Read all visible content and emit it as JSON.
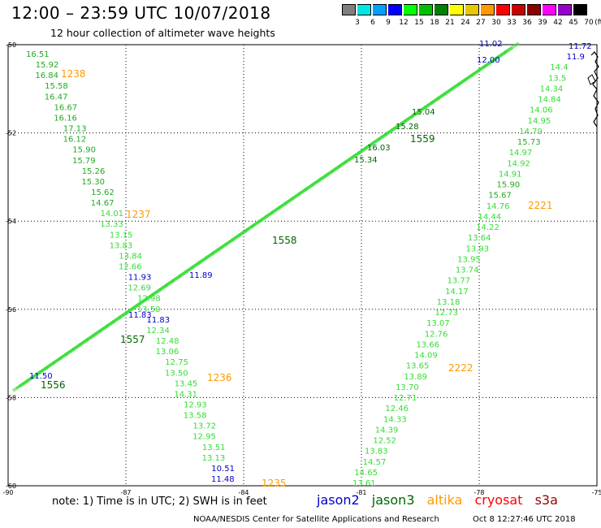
{
  "header": {
    "title": "12:00 – 23:59 UTC 10/07/2018",
    "subtitle": "12 hour collection of altimeter wave heights"
  },
  "colorbar": {
    "unit": "(ft)",
    "levels": [
      {
        "label": "3",
        "color": "#7f7f7f"
      },
      {
        "label": "6",
        "color": "#00e5e5"
      },
      {
        "label": "9",
        "color": "#00a0ff"
      },
      {
        "label": "12",
        "color": "#0000ff"
      },
      {
        "label": "15",
        "color": "#00ff00"
      },
      {
        "label": "18",
        "color": "#00c000"
      },
      {
        "label": "21",
        "color": "#008000"
      },
      {
        "label": "24",
        "color": "#ffff00"
      },
      {
        "label": "27",
        "color": "#e6c800"
      },
      {
        "label": "30",
        "color": "#ff9900"
      },
      {
        "label": "33",
        "color": "#ff0000"
      },
      {
        "label": "36",
        "color": "#c80000"
      },
      {
        "label": "39",
        "color": "#8b0000"
      },
      {
        "label": "42",
        "color": "#ff00ff"
      },
      {
        "label": "45",
        "color": "#9900cc"
      },
      {
        "label": "70",
        "color": "#000000"
      }
    ]
  },
  "axes": {
    "lon_ticks": [
      "-90",
      "-87",
      "-84",
      "-81",
      "-78",
      "-75"
    ],
    "lat_ticks": [
      "-50",
      "-52",
      "-54",
      "-56",
      "-58",
      "-60"
    ]
  },
  "colors": {
    "jason2": "#0000cc",
    "jason3": "#006600",
    "altika": "#ff9900",
    "cryosat": "#ff0000",
    "s3a": "#990000",
    "light_green": "#33dd33",
    "mid_green": "#22aa22"
  },
  "tracks": {
    "track1_labels": [
      "16.51",
      "15.92",
      "16.84",
      "15.58",
      "16.47",
      "16.67",
      "16.16",
      "17.13",
      "16.12",
      "15.90",
      "15.79",
      "15.26",
      "15.30",
      "15.62",
      "14.67",
      "14.01",
      "13.33",
      "13.15",
      "13.83",
      "13.84",
      "12.66",
      "11.93",
      "12.69",
      "12.98",
      "13.50",
      "11.83",
      "12.34",
      "12.48",
      "13.06",
      "12.75",
      "13.50",
      "13.45",
      "14.31",
      "12.93",
      "13.58",
      "13.72",
      "12.95",
      "13.51",
      "13.13",
      "10.51",
      "11.48"
    ],
    "track1_times": [
      "1238",
      "1237",
      "1236",
      "1235"
    ],
    "track2_labels": [
      "11.72",
      "11.9",
      "14.4",
      "13.5",
      "14.34",
      "14.84",
      "14.06",
      "14.95",
      "14.79",
      "15.73",
      "14.97",
      "14.92",
      "14.91",
      "15.90",
      "15.67",
      "14.76",
      "14.44",
      "14.22",
      "13.64",
      "13.93",
      "13.95",
      "13.74",
      "13.77",
      "14.17",
      "13.18",
      "12.73",
      "13.07",
      "12.76",
      "13.66",
      "14.09",
      "13.65",
      "13.89",
      "13.70",
      "12.71",
      "12.46",
      "14.33",
      "14.39",
      "12.52",
      "13.83",
      "14.57",
      "14.65",
      "13.61"
    ],
    "track2_times": [
      "2221",
      "2222"
    ],
    "track3_labels": [
      "11.02",
      "12.00",
      "15.04",
      "15.28",
      "16.03",
      "15.34",
      "11.89",
      "11.83",
      "11.50"
    ],
    "track3_times": [
      "1559",
      "1558",
      "1557",
      "1556"
    ]
  },
  "footer": {
    "note": "note: 1) Time is in UTC; 2) SWH is in feet",
    "legend": {
      "jason2": "jason2",
      "jason3": "jason3",
      "altika": "altika",
      "cryosat": "cryosat",
      "s3a": "s3a"
    },
    "credit": "NOAA/NESDIS Center for Satellite Applications and Research",
    "timestamp": "Oct  8 12:27:46 UTC 2018"
  }
}
